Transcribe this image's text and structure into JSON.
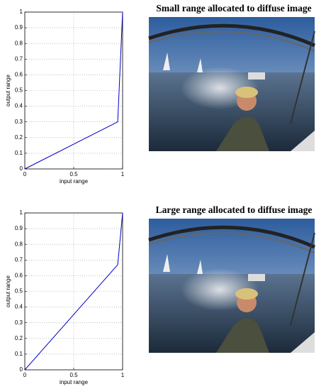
{
  "chart_data": [
    {
      "type": "line",
      "x": [
        0,
        0.95,
        1
      ],
      "values": [
        0,
        0.3,
        1
      ],
      "color": "#0000cc",
      "xlabel": "input range",
      "ylabel": "output range",
      "xlim": [
        0,
        1
      ],
      "xticks": [
        0,
        0.5,
        1
      ],
      "ylim": [
        0,
        1
      ],
      "yticks": [
        0,
        0.1,
        0.2,
        0.3,
        0.4,
        0.5,
        0.6,
        0.7,
        0.8,
        0.9,
        1
      ],
      "grid": true
    },
    {
      "type": "line",
      "x": [
        0,
        0.95,
        1
      ],
      "values": [
        0,
        0.67,
        1
      ],
      "color": "#0000cc",
      "xlabel": "input range",
      "ylabel": "output range",
      "xlim": [
        0,
        1
      ],
      "xticks": [
        0,
        0.5,
        1
      ],
      "ylim": [
        0,
        1
      ],
      "yticks": [
        0,
        0.1,
        0.2,
        0.3,
        0.4,
        0.5,
        0.6,
        0.7,
        0.8,
        0.9,
        1
      ],
      "grid": true
    }
  ],
  "images": [
    {
      "title": "Small range allocated to diffuse image"
    },
    {
      "title": "Large range allocated to diffuse image"
    }
  ]
}
